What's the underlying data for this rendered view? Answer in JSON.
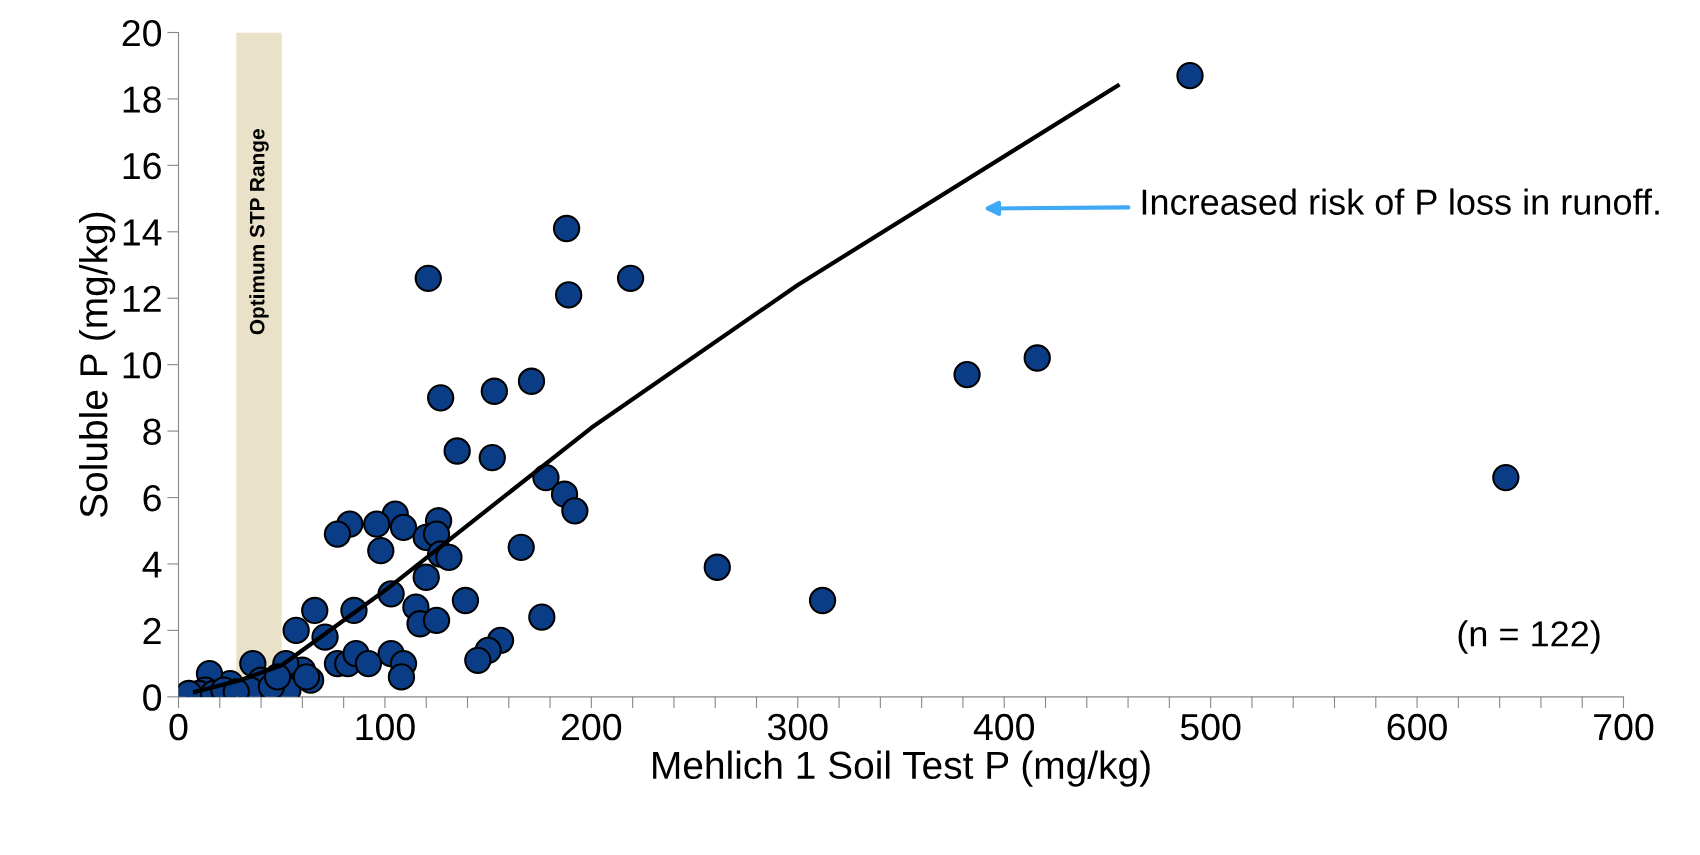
{
  "chart_data": {
    "type": "scatter",
    "xlabel": "Mehlich 1 Soil Test P (mg/kg)",
    "ylabel": "Soluble P (mg/kg)",
    "xlim": [
      0,
      700
    ],
    "ylim": [
      0,
      20
    ],
    "xticks": [
      0,
      {
        "value": 20,
        "label": null
      },
      {
        "value": 40,
        "label": null
      },
      {
        "value": 60,
        "label": null
      },
      {
        "value": 80,
        "label": null
      },
      100,
      {
        "value": 120,
        "label": null
      },
      {
        "value": 140,
        "label": null
      },
      {
        "value": 160,
        "label": null
      },
      {
        "value": 180,
        "label": null
      },
      200,
      {
        "value": 220,
        "label": null
      },
      {
        "value": 240,
        "label": null
      },
      {
        "value": 260,
        "label": null
      },
      {
        "value": 280,
        "label": null
      },
      300,
      {
        "value": 320,
        "label": null
      },
      {
        "value": 340,
        "label": null
      },
      {
        "value": 360,
        "label": null
      },
      {
        "value": 380,
        "label": null
      },
      400,
      {
        "value": 420,
        "label": null
      },
      {
        "value": 440,
        "label": null
      },
      {
        "value": 460,
        "label": null
      },
      {
        "value": 480,
        "label": null
      },
      500,
      {
        "value": 520,
        "label": null
      },
      {
        "value": 540,
        "label": null
      },
      {
        "value": 560,
        "label": null
      },
      {
        "value": 580,
        "label": null
      },
      600,
      {
        "value": 620,
        "label": null
      },
      {
        "value": 640,
        "label": null
      },
      {
        "value": 660,
        "label": null
      },
      {
        "value": 680,
        "label": null
      },
      700
    ],
    "yticks": [
      0,
      2,
      4,
      6,
      8,
      10,
      12,
      14,
      16,
      18,
      20
    ],
    "grid": false,
    "legend": false,
    "marker": "circle",
    "series": [
      {
        "color": "#0b3d86",
        "x": [
          490,
          188,
          121,
          219,
          189,
          416,
          382,
          171,
          153,
          127,
          135,
          152,
          178,
          643,
          187,
          192,
          105,
          83,
          77,
          96,
          109,
          126,
          120,
          125,
          98,
          166,
          127,
          131,
          261,
          103,
          120,
          139,
          312,
          115,
          66,
          85,
          57,
          117,
          125,
          176,
          71,
          156,
          150,
          145,
          103,
          77,
          82,
          86,
          92,
          109,
          108,
          64,
          60,
          52,
          36,
          53,
          40,
          25,
          15,
          13,
          10,
          5,
          17,
          22,
          35,
          45,
          48,
          28,
          62
        ],
        "values": [
          18.7,
          14.1,
          12.6,
          12.6,
          12.1,
          10.2,
          9.7,
          9.5,
          9.2,
          9.0,
          7.4,
          7.2,
          6.6,
          6.6,
          6.1,
          5.6,
          5.5,
          5.2,
          4.9,
          5.2,
          5.1,
          5.3,
          4.8,
          4.9,
          4.4,
          4.5,
          4.3,
          4.2,
          3.9,
          3.1,
          3.6,
          2.9,
          2.9,
          2.7,
          2.6,
          2.6,
          2.0,
          2.2,
          2.3,
          2.4,
          1.8,
          1.7,
          1.4,
          1.1,
          1.3,
          1.0,
          1.0,
          1.3,
          1.0,
          1.0,
          0.6,
          0.5,
          0.8,
          1.0,
          1.0,
          0.2,
          0.5,
          0.4,
          0.7,
          0.2,
          0.1,
          0.1,
          0.1,
          0.2,
          0.2,
          0.3,
          0.6,
          0.15,
          0.6
        ]
      },
      {
        "type": "line",
        "color": "#000000",
        "line_style": "solid",
        "marker": "none",
        "x": [
          8,
          30,
          50,
          100,
          200,
          300,
          455
        ],
        "values": [
          0.15,
          0.5,
          0.95,
          3.2,
          8.1,
          12.4,
          18.4
        ]
      }
    ],
    "bands": [
      {
        "axis": "x",
        "from": 28,
        "to": 50,
        "label": "Optimum STP Range",
        "color": "#e6dcc0"
      }
    ],
    "annotations": [
      "Increased risk of P loss in runoff.",
      "(n = 122)"
    ]
  }
}
